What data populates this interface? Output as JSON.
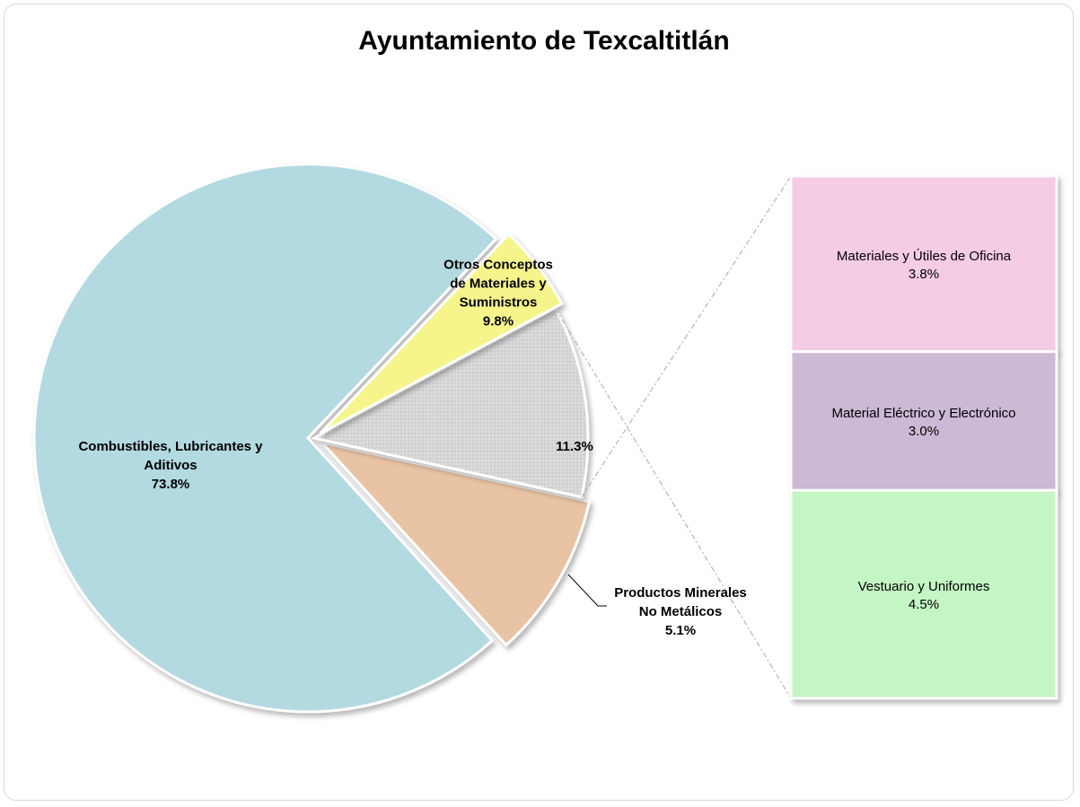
{
  "chart_data": {
    "type": "pie",
    "subtype": "bar-of-pie",
    "title": "Ayuntamiento de Texcaltitlán",
    "pie_slices": [
      {
        "label": [
          "Combustibles, Lubricantes y",
          "Aditivos"
        ],
        "value": 73.8,
        "value_label": "73.8%",
        "color": "#b3d9e1"
      },
      {
        "label": [
          "Otros Conceptos",
          "de Materiales y",
          "Suministros"
        ],
        "value": 9.8,
        "value_label": "9.8%",
        "color": "#e8c3a4"
      },
      {
        "label": [],
        "value": 11.3,
        "value_label": "11.3%",
        "color": "#d4d4d4"
      },
      {
        "label": [
          "Productos Minerales",
          "No Metálicos"
        ],
        "value": 5.1,
        "value_label": "5.1%",
        "color": "#f5f58c"
      }
    ],
    "bar_segments": [
      {
        "label": "Materiales y Útiles de Oficina",
        "value": 3.8,
        "value_label": "3.8%",
        "color": "#f5cce3"
      },
      {
        "label": "Material Eléctrico y Electrónico",
        "value": 3.0,
        "value_label": "3.0%",
        "color": "#cbb9d6"
      },
      {
        "label": "Vestuario y Uniformes",
        "value": 4.5,
        "value_label": "4.5%",
        "color": "#c4f5c4"
      }
    ]
  }
}
